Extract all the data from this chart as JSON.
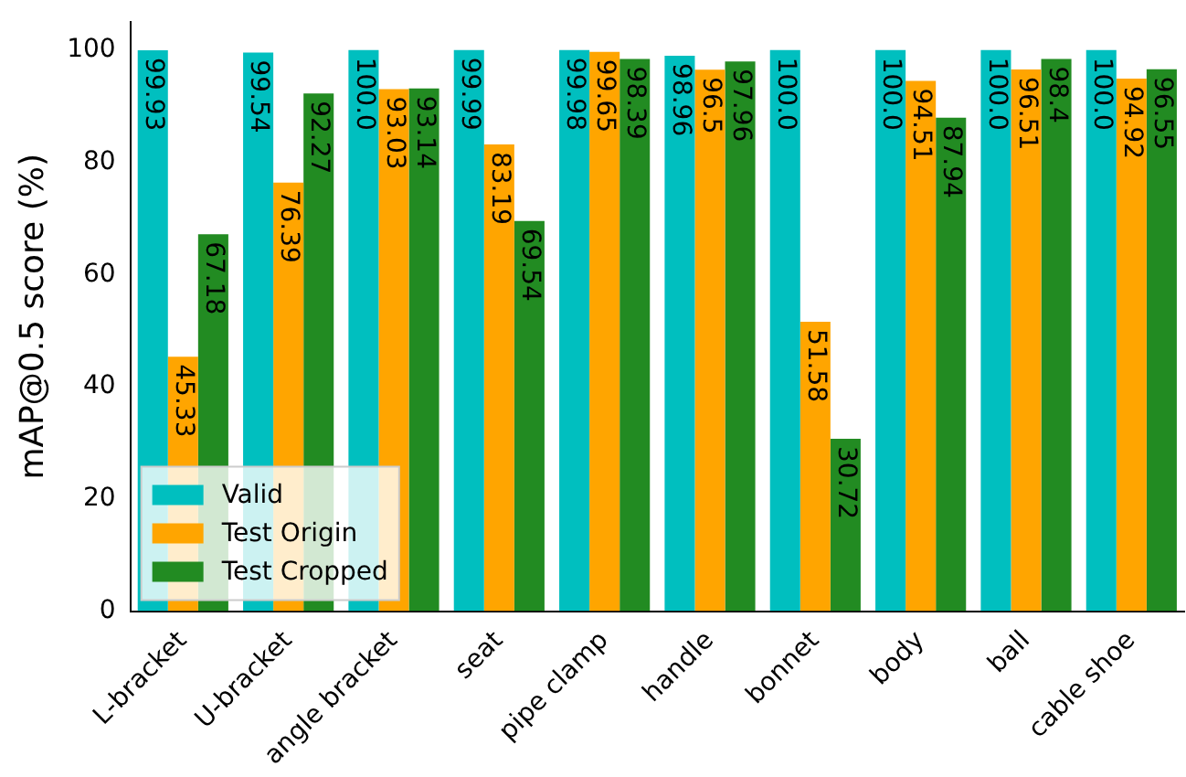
{
  "chart_data": {
    "type": "bar",
    "ylabel": "mAP@0.5 score (%)",
    "categories": [
      "L-bracket",
      "U-bracket",
      "angle bracket",
      "seat",
      "pipe clamp",
      "handle",
      "bonnet",
      "body",
      "ball",
      "cable shoe"
    ],
    "series": [
      {
        "name": "Valid",
        "color": "#00bfbf",
        "values": [
          99.93,
          99.54,
          100.0,
          99.99,
          99.98,
          98.96,
          100.0,
          100.0,
          100.0,
          100.0
        ],
        "value_labels": [
          "99.93",
          "99.54",
          "100.0",
          "99.99",
          "99.98",
          "98.96",
          "100.0",
          "100.0",
          "100.0",
          "100.0"
        ]
      },
      {
        "name": "Test Origin",
        "color": "#ffa500",
        "values": [
          45.33,
          76.39,
          93.03,
          83.19,
          99.65,
          96.5,
          51.58,
          94.51,
          96.51,
          94.92
        ],
        "value_labels": [
          "45.33",
          "76.39",
          "93.03",
          "83.19",
          "99.65",
          "96.5",
          "51.58",
          "94.51",
          "96.51",
          "94.92"
        ]
      },
      {
        "name": "Test Cropped",
        "color": "#228b22",
        "values": [
          67.18,
          92.27,
          93.14,
          69.54,
          98.39,
          97.96,
          30.72,
          87.94,
          98.4,
          96.55
        ],
        "value_labels": [
          "67.18",
          "92.27",
          "93.14",
          "69.54",
          "98.39",
          "97.96",
          "30.72",
          "87.94",
          "98.4",
          "96.55"
        ]
      }
    ],
    "ylim": [
      0,
      105
    ],
    "yticks": [
      0,
      20,
      40,
      60,
      80,
      100
    ],
    "grid": false,
    "legend": "bottom left"
  }
}
